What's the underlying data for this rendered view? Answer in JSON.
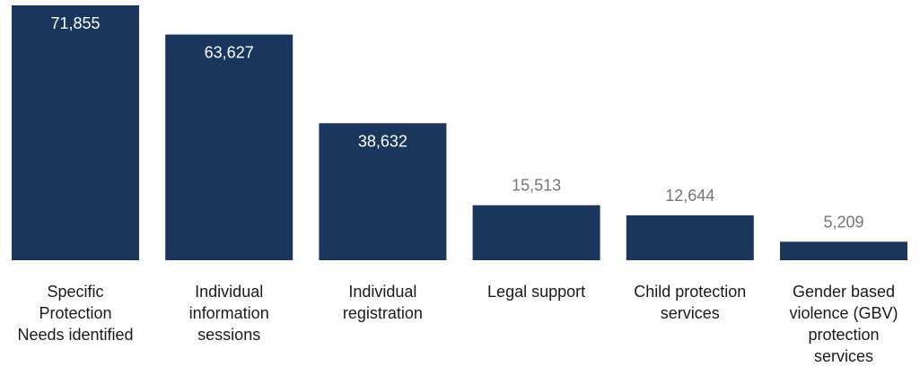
{
  "chart_data": {
    "type": "bar",
    "categories": [
      "Specific\nProtection\nNeeds identified",
      "Individual\ninformation\nsessions",
      "Individual\nregistration",
      "Legal support",
      "Child protection\nservices",
      "Gender based\nviolence (GBV)\nprotection\nservices"
    ],
    "values": [
      71855,
      63627,
      38632,
      15513,
      12644,
      5209
    ],
    "value_labels": [
      "71,855",
      "63,627",
      "38,632",
      "15,513",
      "12,644",
      "5,209"
    ],
    "title": "",
    "xlabel": "",
    "ylabel": "",
    "ylim": [
      0,
      71855
    ],
    "grid": false,
    "legend": "none",
    "colors": {
      "bar": "#1b365d",
      "label_inside": "#ffffff",
      "label_outside": "#767676",
      "category_text": "#1a1a1a"
    }
  }
}
